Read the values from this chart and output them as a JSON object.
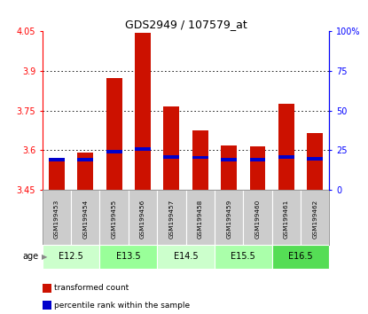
{
  "title": "GDS2949 / 107579_at",
  "samples": [
    "GSM199453",
    "GSM199454",
    "GSM199455",
    "GSM199456",
    "GSM199457",
    "GSM199458",
    "GSM199459",
    "GSM199460",
    "GSM199461",
    "GSM199462"
  ],
  "transformed_count": [
    3.565,
    3.592,
    3.875,
    4.045,
    3.765,
    3.675,
    3.62,
    3.615,
    3.775,
    3.665
  ],
  "percentile_rank": [
    3.565,
    3.565,
    3.595,
    3.605,
    3.575,
    3.573,
    3.565,
    3.565,
    3.575,
    3.568
  ],
  "ymin": 3.45,
  "ymax": 4.05,
  "yticks": [
    3.45,
    3.6,
    3.75,
    3.9,
    4.05
  ],
  "ytick_labels": [
    "3.45",
    "3.6",
    "3.75",
    "3.9",
    "4.05"
  ],
  "grid_values": [
    3.6,
    3.75,
    3.9
  ],
  "right_yticks_pct": [
    0,
    25,
    50,
    75,
    100
  ],
  "right_ytick_labels": [
    "0",
    "25",
    "50",
    "75",
    "100%"
  ],
  "age_groups": [
    {
      "label": "E12.5",
      "start": 0,
      "end": 2,
      "color": "#ccffcc"
    },
    {
      "label": "E13.5",
      "start": 2,
      "end": 4,
      "color": "#99ff99"
    },
    {
      "label": "E14.5",
      "start": 4,
      "end": 6,
      "color": "#ccffcc"
    },
    {
      "label": "E15.5",
      "start": 6,
      "end": 8,
      "color": "#aaffaa"
    },
    {
      "label": "E16.5",
      "start": 8,
      "end": 10,
      "color": "#55dd55"
    }
  ],
  "bar_color": "#cc1100",
  "marker_color": "#0000cc",
  "bar_width": 0.55,
  "base_value": 3.45,
  "legend_items": [
    {
      "label": "transformed count",
      "color": "#cc1100"
    },
    {
      "label": "percentile rank within the sample",
      "color": "#0000cc"
    }
  ],
  "age_label": "age",
  "sample_area_color": "#cccccc",
  "fig_width": 4.15,
  "fig_height": 3.54
}
